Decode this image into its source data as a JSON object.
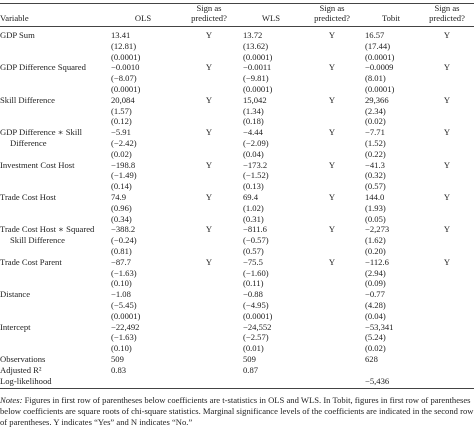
{
  "table": {
    "columns": [
      "Variable",
      "OLS",
      "Sign as predicted?",
      "WLS",
      "Sign as predicted?",
      "Tobit",
      "Sign as predicted?"
    ],
    "rows": [
      {
        "variable": "GDP Sum",
        "cells": [
          [
            "13.41",
            "(12.81)",
            "(0.0001)"
          ],
          "Y",
          [
            "13.72",
            "(13.62)",
            "(0.0001)"
          ],
          "Y",
          [
            "16.57",
            "(17.44)",
            "(0.0001)"
          ],
          "Y"
        ]
      },
      {
        "variable": "GDP Difference Squared",
        "cells": [
          [
            "−0.0010",
            "(−8.07)",
            "(0.0001)"
          ],
          "Y",
          [
            "−0.0011",
            "(−9.81)",
            "(0.0001)"
          ],
          "Y",
          [
            "−0.0009",
            "(8.01)",
            "(0.0001)"
          ],
          "Y"
        ]
      },
      {
        "variable": "Skill Difference",
        "cells": [
          [
            "20,084",
            "(1.57)",
            "(0.12)"
          ],
          "Y",
          [
            "15,042",
            "(1.34)",
            "(0.18)"
          ],
          "Y",
          [
            "29,366",
            "(2.34)",
            "(0.02)"
          ],
          "Y"
        ]
      },
      {
        "variable": "GDP Difference ∗ Skill Difference",
        "cells": [
          [
            "−5.91",
            "(−2.42)",
            "(0.02)"
          ],
          "Y",
          [
            "−4.44",
            "(−2.09)",
            "(0.04)"
          ],
          "Y",
          [
            "−7.71",
            "(1.52)",
            "(0.22)"
          ],
          "Y"
        ]
      },
      {
        "variable": "Investment Cost Host",
        "cells": [
          [
            "−198.8",
            "(−1.49)",
            "(0.14)"
          ],
          "Y",
          [
            "−173.2",
            "(−1.52)",
            "(0.13)"
          ],
          "Y",
          [
            "−41.3",
            "(0.32)",
            "(0.57)"
          ],
          "Y"
        ]
      },
      {
        "variable": "Trade Cost Host",
        "cells": [
          [
            "74.9",
            "(0.96)",
            "(0.34)"
          ],
          "Y",
          [
            "69.4",
            "(1.02)",
            "(0.31)"
          ],
          "Y",
          [
            "144.0",
            "(1.93)",
            "(0.05)"
          ],
          "Y"
        ]
      },
      {
        "variable": "Trade Cost Host ∗ Squared Skill Difference",
        "cells": [
          [
            "−388.2",
            "(−0.24)",
            "(0.81)"
          ],
          "Y",
          [
            "−811.6",
            "(−0.57)",
            "(0.57)"
          ],
          "Y",
          [
            "−2,273",
            "(1.62)",
            "(0.20)"
          ],
          "Y"
        ]
      },
      {
        "variable": "Trade Cost Parent",
        "cells": [
          [
            "−87.7",
            "(−1.63)",
            "(0.10)"
          ],
          "Y",
          [
            "−75.5",
            "(−1.60)",
            "(0.11)"
          ],
          "Y",
          [
            "−112.6",
            "(2.94)",
            "(0.09)"
          ],
          "Y"
        ]
      },
      {
        "variable": "Distance",
        "cells": [
          [
            "−1.08",
            "(−5.45)",
            "(0.0001)"
          ],
          null,
          [
            "−0.88",
            "(−4.95)",
            "(0.0001)"
          ],
          null,
          [
            "−0.77",
            "(4.28)",
            "(0.04)"
          ],
          null
        ]
      },
      {
        "variable": "Intercept",
        "cells": [
          [
            "−22,492",
            "(−1.63)",
            "(0.10)"
          ],
          null,
          [
            "−24,552",
            "(−2.57)",
            "(0.01)"
          ],
          null,
          [
            "−53,341",
            "(5.24)",
            "(0.02)"
          ],
          null
        ]
      },
      {
        "variable": "Observations",
        "cells": [
          [
            "509"
          ],
          null,
          [
            "509"
          ],
          null,
          [
            "628"
          ],
          null
        ]
      },
      {
        "variable": "Adjusted R²",
        "cells": [
          [
            "0.83"
          ],
          null,
          [
            "0.87"
          ],
          null,
          null,
          null
        ]
      },
      {
        "variable": "Log-likelihood",
        "cells": [
          null,
          null,
          null,
          null,
          [
            "−5,436"
          ],
          null
        ]
      }
    ],
    "notes_label": "Notes:",
    "notes": "Figures in first row of parentheses below coefficients are t-statistics in OLS and WLS. In Tobit, figures in first row of parentheses below coefficients are square roots of chi-square statistics. Marginal significance levels of the coefficients are indicated in the second row of parentheses. Y indicates “Yes” and N indicates “No.”"
  }
}
